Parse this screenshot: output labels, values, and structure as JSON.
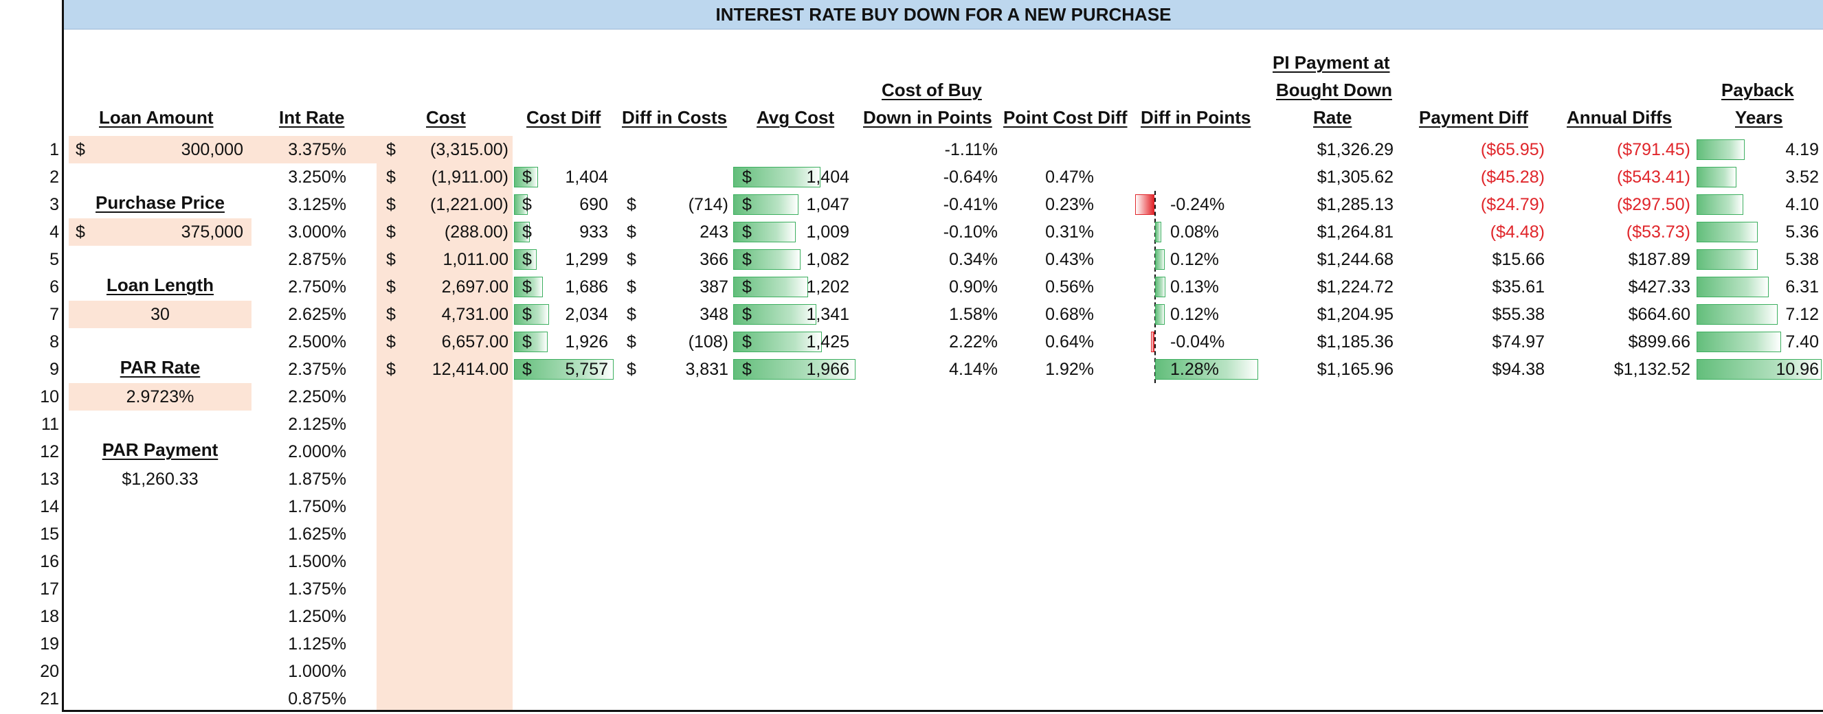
{
  "title": "INTEREST RATE BUY DOWN FOR A NEW PURCHASE",
  "colors": {
    "header_fill": "#bdd7ee",
    "input_fill": "#fce4d6",
    "positive_bar": "#63be7b",
    "negative_bar": "#e0262b",
    "negative_text": "#e0262b"
  },
  "headers": {
    "loan_amount": "Loan Amount",
    "int_rate": "Int Rate",
    "cost": "Cost",
    "cost_diff": "Cost Diff",
    "diff_in_costs": "Diff in Costs",
    "avg_cost": "Avg Cost",
    "cost_of_buy_down_1": "Cost of Buy",
    "cost_of_buy_down_2": "Down in Points",
    "point_cost_diff": "Point Cost Diff",
    "diff_in_points": "Diff in Points",
    "pi_payment_1": "PI Payment at",
    "pi_payment_2": "Bought Down",
    "pi_payment_3": "Rate",
    "payment_diff": "Payment Diff",
    "annual_diffs": "Annual Diffs",
    "payback_1": "Payback",
    "payback_2": "Years"
  },
  "inputs": {
    "loan_amount_dollar": "$",
    "loan_amount": "300,000",
    "purchase_price_label": "Purchase Price",
    "purchase_price_dollar": "$",
    "purchase_price": "375,000",
    "loan_length_label": "Loan Length",
    "loan_length": "30",
    "par_rate_label": "PAR Rate",
    "par_rate": "2.9723%",
    "par_payment_label": "PAR Payment",
    "par_payment": "$1,260.33"
  },
  "row_numbers": [
    "1",
    "2",
    "3",
    "4",
    "5",
    "6",
    "7",
    "8",
    "9",
    "10",
    "11",
    "12",
    "13",
    "14",
    "15",
    "16",
    "17",
    "18",
    "19",
    "20",
    "21"
  ],
  "int_rates": [
    "3.375%",
    "3.250%",
    "3.125%",
    "3.000%",
    "2.875%",
    "2.750%",
    "2.625%",
    "2.500%",
    "2.375%",
    "2.250%",
    "2.125%",
    "2.000%",
    "1.875%",
    "1.750%",
    "1.625%",
    "1.500%",
    "1.375%",
    "1.250%",
    "1.125%",
    "1.000%",
    "0.875%"
  ],
  "rows": [
    {
      "cost": "(3,315.00)",
      "cost_diff": "",
      "diff_in_costs": "",
      "avg_cost": "",
      "points": "-1.11%",
      "point_cost_diff": "",
      "diff_in_points": "",
      "pi_payment": "$1,326.29",
      "payment_diff": "($65.95)",
      "annual_diffs": "($791.45)",
      "payback": "4.19",
      "cost_diff_v": null,
      "avg_cost_v": null,
      "diff_points_v": null,
      "payback_v": 4.19,
      "neg_payment": true
    },
    {
      "cost": "(1,911.00)",
      "cost_diff": "1,404",
      "diff_in_costs": "",
      "avg_cost": "1,404",
      "points": "-0.64%",
      "point_cost_diff": "0.47%",
      "diff_in_points": "",
      "pi_payment": "$1,305.62",
      "payment_diff": "($45.28)",
      "annual_diffs": "($543.41)",
      "payback": "3.52",
      "cost_diff_v": 1404,
      "avg_cost_v": 1404,
      "diff_points_v": null,
      "payback_v": 3.52,
      "neg_payment": true
    },
    {
      "cost": "(1,221.00)",
      "cost_diff": "690",
      "diff_in_costs": "(714)",
      "avg_cost": "1,047",
      "points": "-0.41%",
      "point_cost_diff": "0.23%",
      "diff_in_points": "-0.24%",
      "pi_payment": "$1,285.13",
      "payment_diff": "($24.79)",
      "annual_diffs": "($297.50)",
      "payback": "4.10",
      "cost_diff_v": 690,
      "avg_cost_v": 1047,
      "diff_points_v": -0.24,
      "payback_v": 4.1,
      "neg_payment": true
    },
    {
      "cost": "(288.00)",
      "cost_diff": "933",
      "diff_in_costs": "243",
      "avg_cost": "1,009",
      "points": "-0.10%",
      "point_cost_diff": "0.31%",
      "diff_in_points": "0.08%",
      "pi_payment": "$1,264.81",
      "payment_diff": "($4.48)",
      "annual_diffs": "($53.73)",
      "payback": "5.36",
      "cost_diff_v": 933,
      "avg_cost_v": 1009,
      "diff_points_v": 0.08,
      "payback_v": 5.36,
      "neg_payment": true
    },
    {
      "cost": "1,011.00",
      "cost_diff": "1,299",
      "diff_in_costs": "366",
      "avg_cost": "1,082",
      "points": "0.34%",
      "point_cost_diff": "0.43%",
      "diff_in_points": "0.12%",
      "pi_payment": "$1,244.68",
      "payment_diff": "$15.66",
      "annual_diffs": "$187.89",
      "payback": "5.38",
      "cost_diff_v": 1299,
      "avg_cost_v": 1082,
      "diff_points_v": 0.12,
      "payback_v": 5.38,
      "neg_payment": false
    },
    {
      "cost": "2,697.00",
      "cost_diff": "1,686",
      "diff_in_costs": "387",
      "avg_cost": "1,202",
      "points": "0.90%",
      "point_cost_diff": "0.56%",
      "diff_in_points": "0.13%",
      "pi_payment": "$1,224.72",
      "payment_diff": "$35.61",
      "annual_diffs": "$427.33",
      "payback": "6.31",
      "cost_diff_v": 1686,
      "avg_cost_v": 1202,
      "diff_points_v": 0.13,
      "payback_v": 6.31,
      "neg_payment": false
    },
    {
      "cost": "4,731.00",
      "cost_diff": "2,034",
      "diff_in_costs": "348",
      "avg_cost": "1,341",
      "points": "1.58%",
      "point_cost_diff": "0.68%",
      "diff_in_points": "0.12%",
      "pi_payment": "$1,204.95",
      "payment_diff": "$55.38",
      "annual_diffs": "$664.60",
      "payback": "7.12",
      "cost_diff_v": 2034,
      "avg_cost_v": 1341,
      "diff_points_v": 0.12,
      "payback_v": 7.12,
      "neg_payment": false
    },
    {
      "cost": "6,657.00",
      "cost_diff": "1,926",
      "diff_in_costs": "(108)",
      "avg_cost": "1,425",
      "points": "2.22%",
      "point_cost_diff": "0.64%",
      "diff_in_points": "-0.04%",
      "pi_payment": "$1,185.36",
      "payment_diff": "$74.97",
      "annual_diffs": "$899.66",
      "payback": "7.40",
      "cost_diff_v": 1926,
      "avg_cost_v": 1425,
      "diff_points_v": -0.04,
      "payback_v": 7.4,
      "neg_payment": false
    },
    {
      "cost": "12,414.00",
      "cost_diff": "5,757",
      "diff_in_costs": "3,831",
      "avg_cost": "1,966",
      "points": "4.14%",
      "point_cost_diff": "1.92%",
      "diff_in_points": "1.28%",
      "pi_payment": "$1,165.96",
      "payment_diff": "$94.38",
      "annual_diffs": "$1,132.52",
      "payback": "10.96",
      "cost_diff_v": 5757,
      "avg_cost_v": 1966,
      "diff_points_v": 1.28,
      "payback_v": 10.96,
      "neg_payment": false
    }
  ],
  "dollar_sign": "$"
}
